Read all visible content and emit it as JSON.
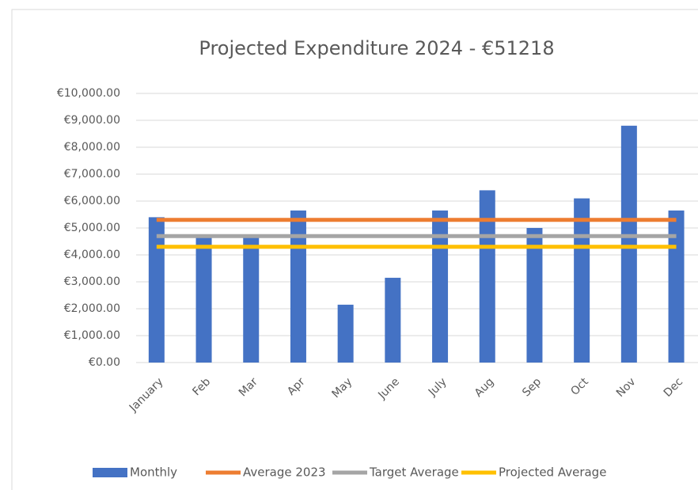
{
  "chart_data": {
    "type": "bar",
    "title": "Projected Expenditure 2024 - €51218",
    "categories": [
      "January",
      "Feb",
      "Mar",
      "Apr",
      "May",
      "June",
      "July",
      "Aug",
      "Sep",
      "Oct",
      "Nov",
      "Dec"
    ],
    "series": [
      {
        "name": "Monthly",
        "type": "bar",
        "color": "#4472c4",
        "values": [
          5400,
          4700,
          4700,
          5650,
          2150,
          3150,
          5650,
          6400,
          5000,
          6100,
          8800,
          5650
        ]
      },
      {
        "name": "Average 2023",
        "type": "line",
        "color": "#ed7d31",
        "values": [
          5300,
          5300,
          5300,
          5300,
          5300,
          5300,
          5300,
          5300,
          5300,
          5300,
          5300,
          5300
        ]
      },
      {
        "name": "Target Average",
        "type": "line",
        "color": "#a5a5a5",
        "values": [
          4700,
          4700,
          4700,
          4700,
          4700,
          4700,
          4700,
          4700,
          4700,
          4700,
          4700,
          4700
        ]
      },
      {
        "name": "Projected Average",
        "type": "line",
        "color": "#ffc000",
        "values": [
          4300,
          4300,
          4300,
          4300,
          4300,
          4300,
          4300,
          4300,
          4300,
          4300,
          4300,
          4300
        ]
      }
    ],
    "ylim": [
      0,
      10000
    ],
    "yticks": [
      {
        "value": 0,
        "label": "€0.00"
      },
      {
        "value": 1000,
        "label": "€1,000.00"
      },
      {
        "value": 2000,
        "label": "€2,000.00"
      },
      {
        "value": 3000,
        "label": "€3,000.00"
      },
      {
        "value": 4000,
        "label": "€4,000.00"
      },
      {
        "value": 5000,
        "label": "€5,000.00"
      },
      {
        "value": 6000,
        "label": "€6,000.00"
      },
      {
        "value": 7000,
        "label": "€7,000.00"
      },
      {
        "value": 8000,
        "label": "€8,000.00"
      },
      {
        "value": 9000,
        "label": "€9,000.00"
      },
      {
        "value": 10000,
        "label": "€10,000.00"
      }
    ],
    "grid": true,
    "legend": "bottom"
  }
}
